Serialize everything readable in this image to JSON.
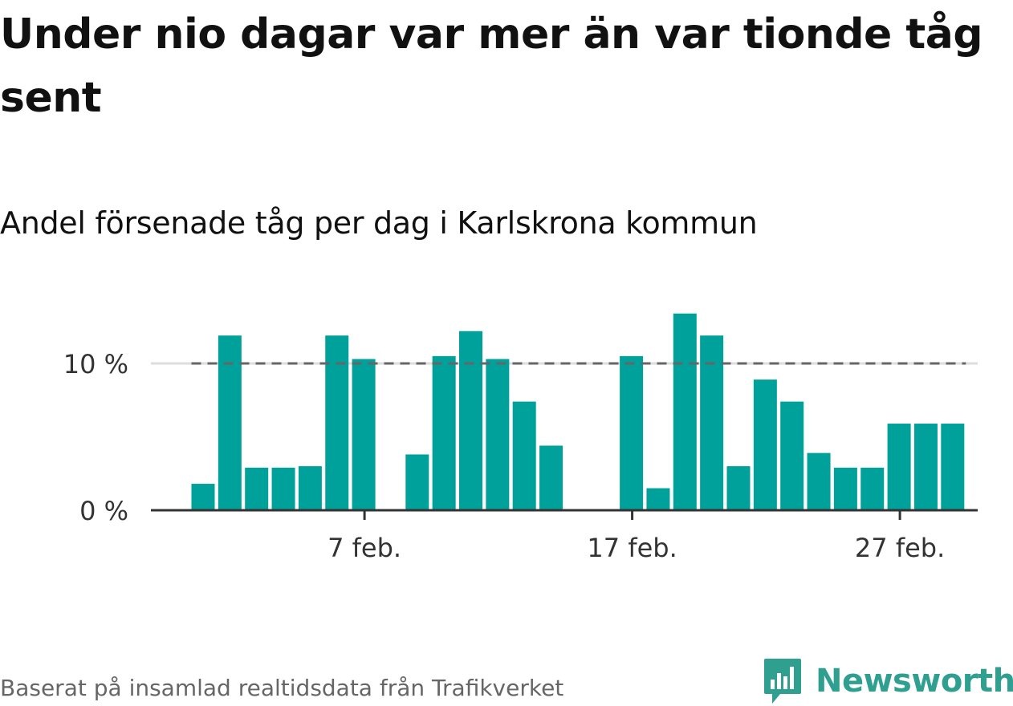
{
  "title": "Under nio dagar var mer än var tionde tåg sent",
  "subtitle": "Andel försenade tåg per dag i Karlskrona kommun",
  "source": "Baserat på insamlad realtidsdata från Trafikverket",
  "brand": {
    "name": "Newsworthy",
    "icon": "newsworthy-logo-icon"
  },
  "colors": {
    "bar": "#00a19a",
    "threshold": "#666666",
    "axis": "#333333",
    "grid": "#dddddd",
    "brand": "#2f9f8f"
  },
  "chart_data": {
    "type": "bar",
    "title": "Under nio dagar var mer än var tionde tåg sent",
    "subtitle": "Andel försenade tåg per dag i Karlskrona kommun",
    "x": [
      "2023-02-01",
      "2023-02-02",
      "2023-02-03",
      "2023-02-04",
      "2023-02-05",
      "2023-02-06",
      "2023-02-07",
      "2023-02-08",
      "2023-02-09",
      "2023-02-10",
      "2023-02-11",
      "2023-02-12",
      "2023-02-13",
      "2023-02-14",
      "2023-02-15",
      "2023-02-16",
      "2023-02-17",
      "2023-02-18",
      "2023-02-19",
      "2023-02-20",
      "2023-02-21",
      "2023-02-22",
      "2023-02-23",
      "2023-02-24",
      "2023-02-25",
      "2023-02-26",
      "2023-02-27",
      "2023-02-28"
    ],
    "values": [
      1.8,
      11.9,
      2.9,
      2.9,
      3.0,
      11.9,
      10.3,
      null,
      3.8,
      10.5,
      12.2,
      10.3,
      7.4,
      4.4,
      null,
      null,
      10.5,
      1.5,
      13.4,
      11.9,
      3.0,
      8.9,
      7.4,
      3.9,
      2.9,
      2.9,
      5.9,
      5.9
    ],
    "extra_day": {
      "x": "2023-03-01",
      "value": 5.9
    },
    "y_ticks": [
      0,
      10
    ],
    "y_tick_labels": [
      "0 %",
      "10 %"
    ],
    "x_ticks": [
      "2023-02-07",
      "2023-02-17",
      "2023-02-27"
    ],
    "x_tick_labels": [
      "7 feb.",
      "17 feb.",
      "27 feb."
    ],
    "threshold": 10,
    "ylim": [
      0,
      14
    ],
    "grid": true
  }
}
